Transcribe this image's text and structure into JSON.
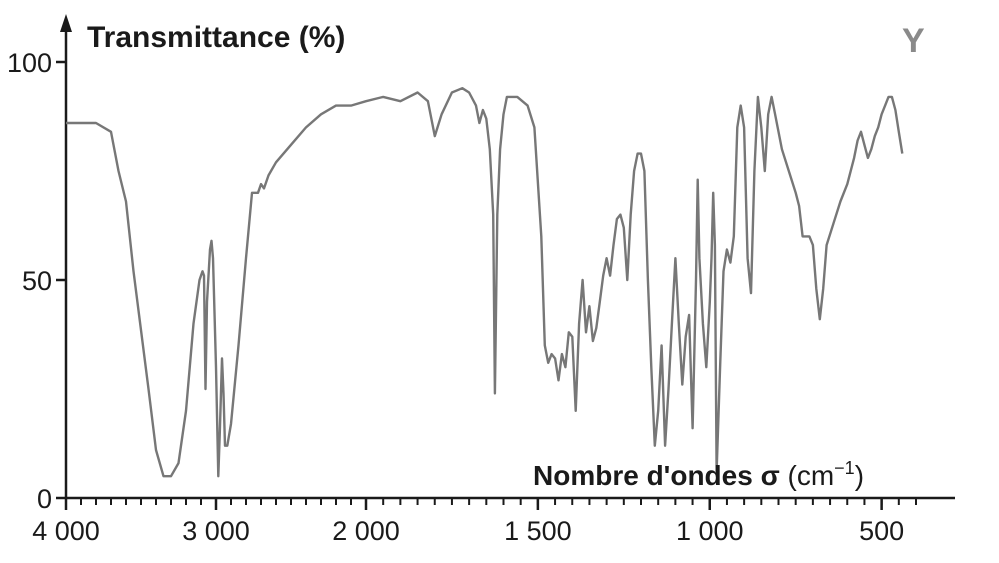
{
  "chart_data": {
    "type": "line",
    "panel_label": "Y",
    "ylabel": "Transmittance (%)",
    "xlabel": {
      "name": "Nombre d'ondes",
      "symbol": "σ",
      "unit_open": "(cm",
      "unit_exp": "−1",
      "unit_close": ")"
    },
    "x_ticks": [
      {
        "value": 4000,
        "label": "4 000"
      },
      {
        "value": 3000,
        "label": "3 000"
      },
      {
        "value": 2000,
        "label": "2 000"
      },
      {
        "value": 1500,
        "label": "1 500"
      },
      {
        "value": 1000,
        "label": "1 000"
      },
      {
        "value": 500,
        "label": "500"
      }
    ],
    "y_ticks": [
      {
        "value": 0,
        "label": "0"
      },
      {
        "value": 50,
        "label": "50"
      },
      {
        "value": 100,
        "label": "100"
      }
    ],
    "xlim": [
      4000,
      400
    ],
    "ylim": [
      0,
      100
    ],
    "x_scale": "piecewise linear (4000–2000 and 2000–400 use different scales)",
    "line_color": "#777777",
    "series": [
      {
        "points": [
          [
            4000,
            86
          ],
          [
            3800,
            86
          ],
          [
            3700,
            84
          ],
          [
            3650,
            75
          ],
          [
            3600,
            68
          ],
          [
            3550,
            52
          ],
          [
            3450,
            25
          ],
          [
            3400,
            11
          ],
          [
            3350,
            5
          ],
          [
            3300,
            5
          ],
          [
            3250,
            8
          ],
          [
            3200,
            20
          ],
          [
            3150,
            40
          ],
          [
            3110,
            50
          ],
          [
            3090,
            52
          ],
          [
            3080,
            51
          ],
          [
            3070,
            25
          ],
          [
            3060,
            45
          ],
          [
            3040,
            57
          ],
          [
            3030,
            59
          ],
          [
            3020,
            55
          ],
          [
            3000,
            30
          ],
          [
            2985,
            5
          ],
          [
            2975,
            15
          ],
          [
            2960,
            32
          ],
          [
            2950,
            24
          ],
          [
            2940,
            12
          ],
          [
            2925,
            12
          ],
          [
            2900,
            17
          ],
          [
            2850,
            35
          ],
          [
            2800,
            55
          ],
          [
            2760,
            70
          ],
          [
            2720,
            70
          ],
          [
            2700,
            72
          ],
          [
            2680,
            71
          ],
          [
            2650,
            74
          ],
          [
            2600,
            77
          ],
          [
            2500,
            81
          ],
          [
            2400,
            85
          ],
          [
            2300,
            88
          ],
          [
            2200,
            90
          ],
          [
            2100,
            90
          ],
          [
            2000,
            91
          ],
          [
            1950,
            92
          ],
          [
            1900,
            91
          ],
          [
            1850,
            93
          ],
          [
            1820,
            91
          ],
          [
            1800,
            83
          ],
          [
            1780,
            88
          ],
          [
            1750,
            93
          ],
          [
            1720,
            94
          ],
          [
            1700,
            93
          ],
          [
            1680,
            90
          ],
          [
            1670,
            86
          ],
          [
            1660,
            89
          ],
          [
            1650,
            87
          ],
          [
            1640,
            80
          ],
          [
            1630,
            65
          ],
          [
            1625,
            24
          ],
          [
            1618,
            65
          ],
          [
            1610,
            80
          ],
          [
            1600,
            88
          ],
          [
            1590,
            92
          ],
          [
            1560,
            92
          ],
          [
            1530,
            90
          ],
          [
            1510,
            85
          ],
          [
            1490,
            60
          ],
          [
            1480,
            35
          ],
          [
            1470,
            31
          ],
          [
            1460,
            33
          ],
          [
            1450,
            32
          ],
          [
            1440,
            27
          ],
          [
            1430,
            33
          ],
          [
            1420,
            30
          ],
          [
            1410,
            38
          ],
          [
            1400,
            37
          ],
          [
            1390,
            20
          ],
          [
            1380,
            40
          ],
          [
            1370,
            50
          ],
          [
            1360,
            38
          ],
          [
            1350,
            44
          ],
          [
            1340,
            36
          ],
          [
            1330,
            39
          ],
          [
            1320,
            45
          ],
          [
            1310,
            51
          ],
          [
            1300,
            55
          ],
          [
            1290,
            51
          ],
          [
            1280,
            58
          ],
          [
            1270,
            64
          ],
          [
            1260,
            65
          ],
          [
            1250,
            62
          ],
          [
            1240,
            50
          ],
          [
            1230,
            65
          ],
          [
            1220,
            75
          ],
          [
            1210,
            79
          ],
          [
            1200,
            79
          ],
          [
            1190,
            75
          ],
          [
            1180,
            50
          ],
          [
            1170,
            30
          ],
          [
            1160,
            12
          ],
          [
            1150,
            20
          ],
          [
            1140,
            35
          ],
          [
            1130,
            12
          ],
          [
            1120,
            25
          ],
          [
            1110,
            40
          ],
          [
            1100,
            55
          ],
          [
            1090,
            40
          ],
          [
            1080,
            26
          ],
          [
            1070,
            37
          ],
          [
            1060,
            42
          ],
          [
            1050,
            16
          ],
          [
            1040,
            50
          ],
          [
            1035,
            73
          ],
          [
            1030,
            55
          ],
          [
            1020,
            40
          ],
          [
            1010,
            30
          ],
          [
            1000,
            45
          ],
          [
            995,
            55
          ],
          [
            990,
            70
          ],
          [
            985,
            58
          ],
          [
            980,
            6
          ],
          [
            970,
            30
          ],
          [
            960,
            52
          ],
          [
            950,
            57
          ],
          [
            940,
            54
          ],
          [
            930,
            60
          ],
          [
            920,
            85
          ],
          [
            910,
            90
          ],
          [
            900,
            85
          ],
          [
            890,
            55
          ],
          [
            880,
            47
          ],
          [
            870,
            75
          ],
          [
            860,
            92
          ],
          [
            850,
            85
          ],
          [
            840,
            75
          ],
          [
            830,
            88
          ],
          [
            820,
            92
          ],
          [
            810,
            88
          ],
          [
            790,
            80
          ],
          [
            770,
            75
          ],
          [
            750,
            70
          ],
          [
            740,
            67
          ],
          [
            730,
            60
          ],
          [
            720,
            60
          ],
          [
            710,
            60
          ],
          [
            700,
            58
          ],
          [
            690,
            48
          ],
          [
            680,
            41
          ],
          [
            670,
            48
          ],
          [
            660,
            58
          ],
          [
            640,
            63
          ],
          [
            620,
            68
          ],
          [
            600,
            72
          ],
          [
            580,
            78
          ],
          [
            570,
            82
          ],
          [
            560,
            84
          ],
          [
            550,
            81
          ],
          [
            540,
            78
          ],
          [
            530,
            80
          ],
          [
            520,
            83
          ],
          [
            510,
            85
          ],
          [
            500,
            88
          ],
          [
            490,
            90
          ],
          [
            480,
            92
          ],
          [
            470,
            92
          ],
          [
            460,
            89
          ],
          [
            450,
            84
          ],
          [
            440,
            79
          ]
        ]
      }
    ]
  }
}
